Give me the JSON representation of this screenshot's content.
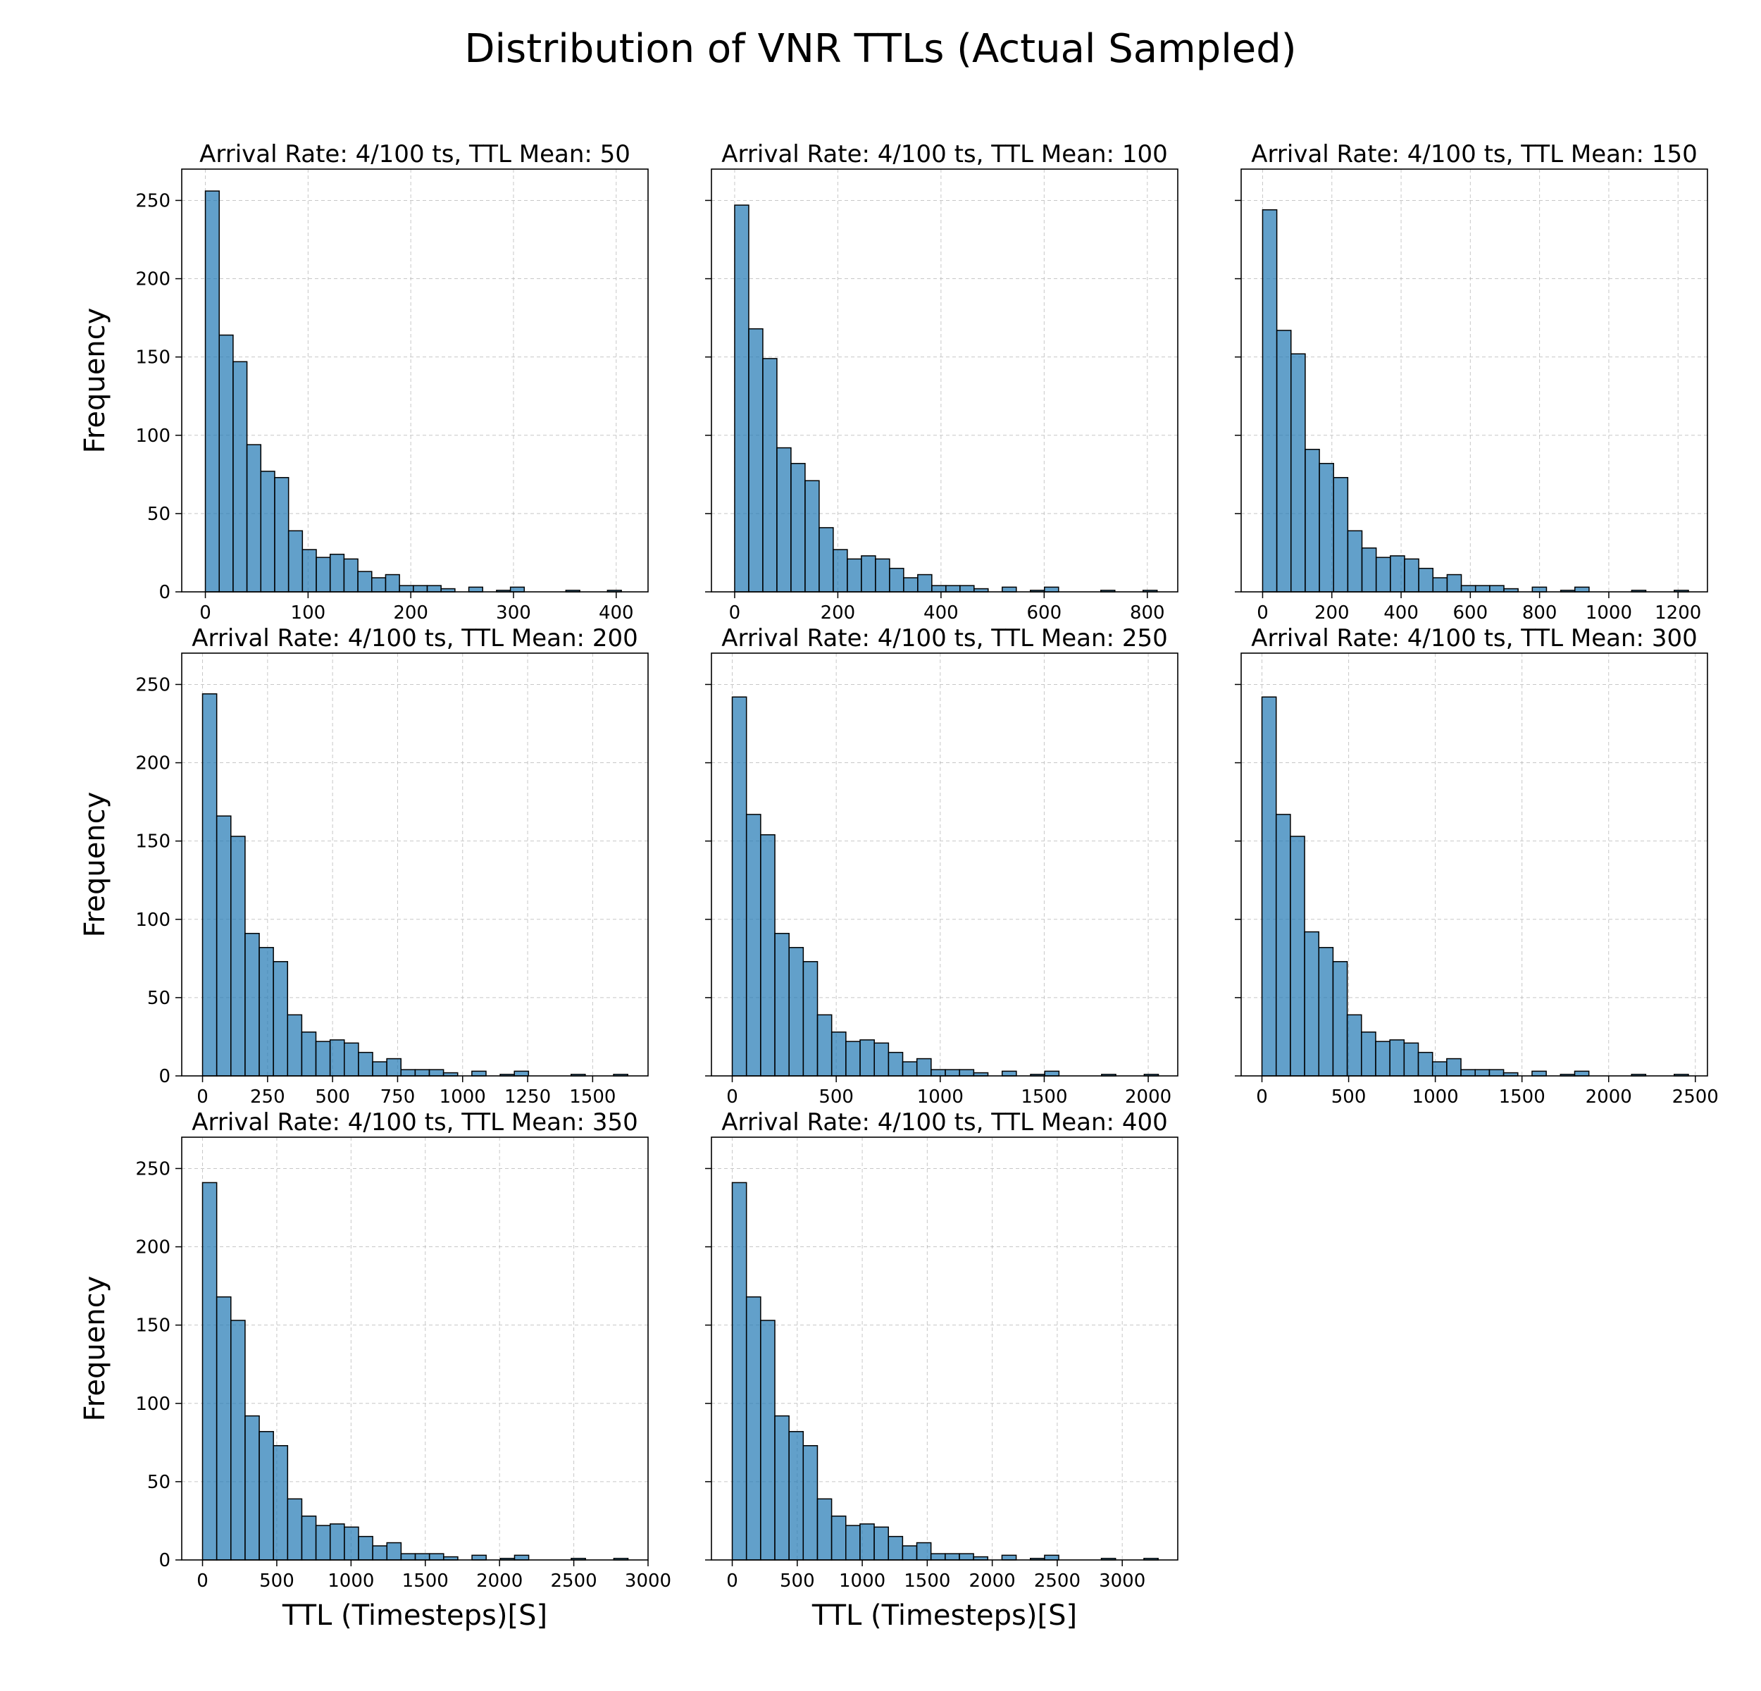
{
  "figure": {
    "title": "Distribution of VNR TTLs (Actual Sampled)"
  },
  "chart_data": [
    {
      "type": "bar",
      "title": "Arrival Rate: 4/100 ts, TTL Mean: 50",
      "xlabel": "",
      "ylabel": "Frequency",
      "xlim": [
        -23,
        431
      ],
      "ylim": [
        0,
        270
      ],
      "xticks": [
        0,
        100,
        200,
        300,
        400
      ],
      "yticks": [
        0,
        50,
        100,
        150,
        200,
        250
      ],
      "bin_width": 13.5,
      "x": [
        0,
        13.5,
        27,
        40.5,
        54,
        67.5,
        81,
        94.5,
        108,
        121.5,
        135,
        148.5,
        162,
        175.5,
        189,
        202.5,
        216,
        229.5,
        243,
        256.5,
        270,
        283.5,
        297,
        310.5,
        324,
        337.5,
        351,
        364.5,
        378,
        391.5
      ],
      "values": [
        256,
        164,
        147,
        94,
        77,
        73,
        39,
        27,
        22,
        24,
        21,
        13,
        9,
        11,
        4,
        4,
        4,
        2,
        0,
        3,
        0,
        1,
        3,
        0,
        0,
        0,
        1,
        0,
        0,
        1
      ]
    },
    {
      "type": "bar",
      "title": "Arrival Rate: 4/100 ts, TTL Mean: 100",
      "xlabel": "",
      "ylabel": "",
      "xlim": [
        -45,
        859
      ],
      "ylim": [
        0,
        270
      ],
      "xticks": [
        0,
        200,
        400,
        600,
        800
      ],
      "yticks": [
        0,
        50,
        100,
        150,
        200,
        250
      ],
      "bin_width": 27.3,
      "x": [
        0,
        27.3,
        54.6,
        81.9,
        109.2,
        136.5,
        163.8,
        191.1,
        218.4,
        245.7,
        273,
        300.3,
        327.6,
        354.9,
        382.2,
        409.5,
        436.8,
        464.1,
        491.4,
        518.7,
        546,
        573.3,
        600.6,
        627.9,
        655.2,
        682.5,
        709.8,
        737.1,
        764.4,
        791.7
      ],
      "values": [
        247,
        168,
        149,
        92,
        82,
        71,
        41,
        27,
        21,
        23,
        21,
        15,
        9,
        11,
        4,
        4,
        4,
        2,
        0,
        3,
        0,
        1,
        3,
        0,
        0,
        0,
        1,
        0,
        0,
        1
      ]
    },
    {
      "type": "bar",
      "title": "Arrival Rate: 4/100 ts, TTL Mean: 150",
      "xlabel": "",
      "ylabel": "",
      "xlim": [
        -62,
        1285
      ],
      "ylim": [
        0,
        270
      ],
      "xticks": [
        0,
        200,
        400,
        600,
        800,
        1000,
        1200
      ],
      "yticks": [
        0,
        50,
        100,
        150,
        200,
        250
      ],
      "bin_width": 41,
      "x": [
        0,
        41,
        82,
        123,
        164,
        205,
        246,
        287,
        328,
        369,
        410,
        451,
        492,
        533,
        574,
        615,
        656,
        697,
        738,
        779,
        820,
        861,
        902,
        943,
        984,
        1025,
        1066,
        1107,
        1148,
        1189
      ],
      "values": [
        244,
        167,
        152,
        91,
        82,
        73,
        39,
        28,
        22,
        23,
        21,
        15,
        9,
        11,
        4,
        4,
        4,
        2,
        0,
        3,
        0,
        1,
        3,
        0,
        0,
        0,
        1,
        0,
        0,
        1
      ]
    },
    {
      "type": "bar",
      "title": "Arrival Rate: 4/100 ts, TTL Mean: 200",
      "xlabel": "",
      "ylabel": "Frequency",
      "xlim": [
        -80,
        1713
      ],
      "ylim": [
        0,
        270
      ],
      "xticks": [
        0,
        250,
        500,
        750,
        1000,
        1250,
        1500
      ],
      "yticks": [
        0,
        50,
        100,
        150,
        200,
        250
      ],
      "bin_width": 54.5,
      "x": [
        0,
        54.5,
        109,
        163.5,
        218,
        272.5,
        327,
        381.5,
        436,
        490.5,
        545,
        599.5,
        654,
        708.5,
        763,
        817.5,
        872,
        926.5,
        981,
        1035.5,
        1090,
        1144.5,
        1199,
        1253.5,
        1308,
        1362.5,
        1417,
        1471.5,
        1526,
        1580.5
      ],
      "values": [
        244,
        166,
        153,
        91,
        82,
        73,
        39,
        28,
        22,
        23,
        21,
        15,
        9,
        11,
        4,
        4,
        4,
        2,
        0,
        3,
        0,
        1,
        3,
        0,
        0,
        0,
        1,
        0,
        0,
        1
      ]
    },
    {
      "type": "bar",
      "title": "Arrival Rate: 4/100 ts, TTL Mean: 250",
      "xlabel": "",
      "ylabel": "",
      "xlim": [
        -100,
        2142
      ],
      "ylim": [
        0,
        270
      ],
      "xticks": [
        0,
        500,
        1000,
        1500,
        2000
      ],
      "yticks": [
        0,
        50,
        100,
        150,
        200,
        250
      ],
      "bin_width": 68.3,
      "x": [
        0,
        68.3,
        136.6,
        204.9,
        273.2,
        341.5,
        409.8,
        478.1,
        546.4,
        614.7,
        683,
        751.3,
        819.6,
        887.9,
        956.2,
        1024.5,
        1092.8,
        1161.1,
        1229.4,
        1297.7,
        1366,
        1434.3,
        1502.6,
        1570.9,
        1639.2,
        1707.5,
        1775.8,
        1844.1,
        1912.4,
        1980.7
      ],
      "values": [
        242,
        167,
        154,
        91,
        82,
        73,
        39,
        28,
        22,
        23,
        21,
        15,
        9,
        11,
        4,
        4,
        4,
        2,
        0,
        3,
        0,
        1,
        3,
        0,
        0,
        0,
        1,
        0,
        0,
        1
      ]
    },
    {
      "type": "bar",
      "title": "Arrival Rate: 4/100 ts, TTL Mean: 300",
      "xlabel": "",
      "ylabel": "",
      "xlim": [
        -120,
        2570
      ],
      "ylim": [
        0,
        270
      ],
      "xticks": [
        0,
        500,
        1000,
        1500,
        2000,
        2500
      ],
      "yticks": [
        0,
        50,
        100,
        150,
        200,
        250
      ],
      "bin_width": 82,
      "x": [
        0,
        82,
        164,
        246,
        328,
        410,
        492,
        574,
        656,
        738,
        820,
        902,
        984,
        1066,
        1148,
        1230,
        1312,
        1394,
        1476,
        1558,
        1640,
        1722,
        1804,
        1886,
        1968,
        2050,
        2132,
        2214,
        2296,
        2378
      ],
      "values": [
        242,
        167,
        153,
        92,
        82,
        73,
        39,
        28,
        22,
        23,
        21,
        15,
        9,
        11,
        4,
        4,
        4,
        2,
        0,
        3,
        0,
        1,
        3,
        0,
        0,
        0,
        1,
        0,
        0,
        1
      ]
    },
    {
      "type": "bar",
      "title": "Arrival Rate: 4/100 ts, TTL Mean: 350",
      "xlabel": "TTL (Timesteps)[S]",
      "ylabel": "Frequency",
      "xlim": [
        -140,
        3000
      ],
      "ylim": [
        0,
        270
      ],
      "xticks": [
        0,
        500,
        1000,
        1500,
        2000,
        2500,
        3000
      ],
      "yticks": [
        0,
        50,
        100,
        150,
        200,
        250
      ],
      "bin_width": 95.5,
      "x": [
        0,
        95.5,
        191,
        286.5,
        382,
        477.5,
        573,
        668.5,
        764,
        859.5,
        955,
        1050.5,
        1146,
        1241.5,
        1337,
        1432.5,
        1528,
        1623.5,
        1719,
        1814.5,
        1910,
        2005.5,
        2101,
        2196.5,
        2292,
        2387.5,
        2483,
        2578.5,
        2674,
        2769.5
      ],
      "values": [
        241,
        168,
        153,
        92,
        82,
        73,
        39,
        28,
        22,
        23,
        21,
        15,
        9,
        11,
        4,
        4,
        4,
        2,
        0,
        3,
        0,
        1,
        3,
        0,
        0,
        0,
        1,
        0,
        0,
        1
      ]
    },
    {
      "type": "bar",
      "title": "Arrival Rate: 4/100 ts, TTL Mean: 400",
      "xlabel": "TTL (Timesteps)[S]",
      "ylabel": "",
      "xlim": [
        -160,
        3427
      ],
      "ylim": [
        0,
        270
      ],
      "xticks": [
        0,
        500,
        1000,
        1500,
        2000,
        2500,
        3000
      ],
      "yticks": [
        0,
        50,
        100,
        150,
        200,
        250
      ],
      "bin_width": 109.2,
      "x": [
        0,
        109.2,
        218.4,
        327.6,
        436.8,
        546,
        655.2,
        764.4,
        873.6,
        982.8,
        1092,
        1201.2,
        1310.4,
        1419.6,
        1528.8,
        1638,
        1747.2,
        1856.4,
        1965.6,
        2074.8,
        2184,
        2293.2,
        2402.4,
        2511.6,
        2620.8,
        2730,
        2839.2,
        2948.4,
        3057.6,
        3166.8
      ],
      "values": [
        241,
        168,
        153,
        92,
        82,
        73,
        39,
        28,
        22,
        23,
        21,
        15,
        9,
        11,
        4,
        4,
        4,
        2,
        0,
        3,
        0,
        1,
        3,
        0,
        0,
        0,
        1,
        0,
        0,
        1
      ]
    }
  ]
}
